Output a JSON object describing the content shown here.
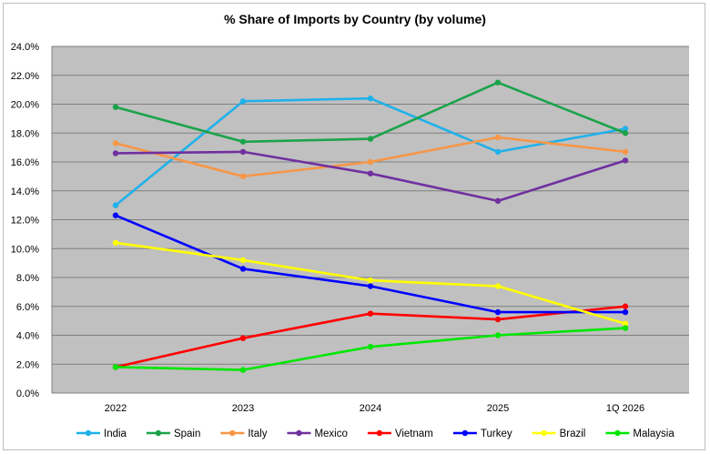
{
  "chart_data": {
    "type": "line",
    "title": "% Share of Imports by Country (by volume)",
    "xlabel": "",
    "ylabel": "",
    "categories": [
      "2022",
      "2023",
      "2024",
      "2025",
      "1Q 2026"
    ],
    "ylim": [
      0,
      24
    ],
    "ytick_step": 2,
    "ytick_labels": [
      "0.0%",
      "2.0%",
      "4.0%",
      "6.0%",
      "8.0%",
      "10.0%",
      "12.0%",
      "14.0%",
      "16.0%",
      "18.0%",
      "20.0%",
      "22.0%",
      "24.0%"
    ],
    "grid": true,
    "plot_background": "#c0c0c0",
    "legend_position": "bottom",
    "series": [
      {
        "name": "India",
        "color": "#1fb1ea",
        "values": [
          13.0,
          20.2,
          20.4,
          16.7,
          18.3
        ]
      },
      {
        "name": "Spain",
        "color": "#1ba34a",
        "values": [
          19.8,
          17.4,
          17.6,
          21.5,
          18.0
        ]
      },
      {
        "name": "Italy",
        "color": "#f79646",
        "values": [
          17.3,
          15.0,
          16.0,
          17.7,
          16.7
        ]
      },
      {
        "name": "Mexico",
        "color": "#7030a0",
        "values": [
          16.6,
          16.7,
          15.2,
          13.3,
          16.1
        ]
      },
      {
        "name": "Vietnam",
        "color": "#ff0000",
        "values": [
          1.8,
          3.8,
          5.5,
          5.1,
          6.0
        ]
      },
      {
        "name": "Turkey",
        "color": "#0000ff",
        "values": [
          12.3,
          8.6,
          7.4,
          5.6,
          5.6
        ]
      },
      {
        "name": "Brazil",
        "color": "#ffff00",
        "values": [
          10.4,
          9.2,
          7.8,
          7.4,
          4.8
        ]
      },
      {
        "name": "Malaysia",
        "color": "#00e600",
        "values": [
          1.8,
          1.6,
          3.2,
          4.0,
          4.5
        ]
      }
    ]
  }
}
